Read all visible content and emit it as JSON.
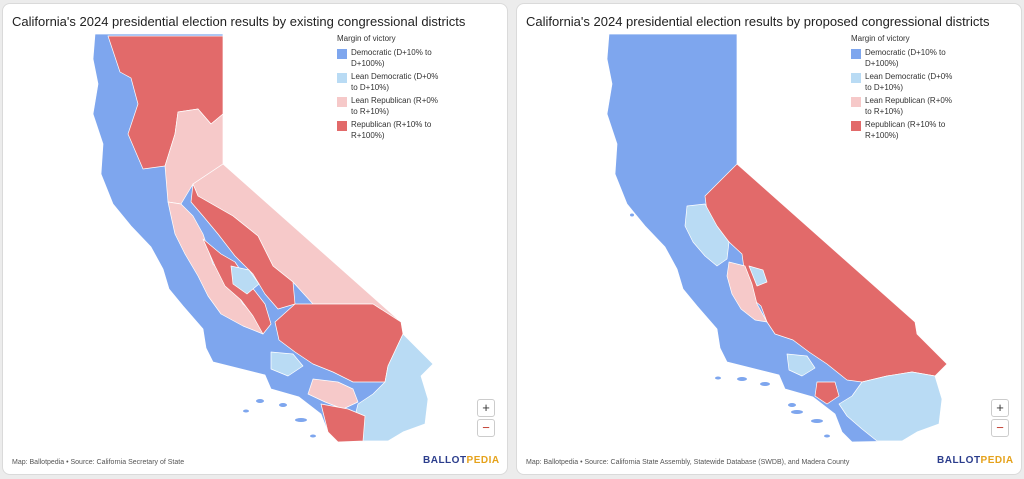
{
  "colors": {
    "democratic": "#7ea6ee",
    "lean_democratic": "#b9dbf4",
    "lean_republican": "#f6c9c9",
    "republican": "#e26a6a"
  },
  "panels": [
    {
      "title": "California's 2024 presidential election results by existing congressional districts",
      "legend_title": "Margin of victory",
      "legend": [
        {
          "label": "Democratic (D+10% to D+100%)",
          "color": "#7ea6ee"
        },
        {
          "label": "Lean Democratic (D+0% to D+10%)",
          "color": "#b9dbf4"
        },
        {
          "label": "Lean Republican (R+0% to R+10%)",
          "color": "#f6c9c9"
        },
        {
          "label": "Republican (R+10% to R+100%)",
          "color": "#e26a6a"
        }
      ],
      "zoom_in": "+",
      "zoom_out": "−",
      "attribution": "Map: Ballotpedia • Source: California Secretary of State",
      "logo_part1": "BALLOT",
      "logo_part2": "PEDIA"
    },
    {
      "title": "California's 2024 presidential election results by proposed congressional districts",
      "legend_title": "Margin of victory",
      "legend": [
        {
          "label": "Democratic (D+10% to D+100%)",
          "color": "#7ea6ee"
        },
        {
          "label": "Lean Democratic (D+0% to D+10%)",
          "color": "#b9dbf4"
        },
        {
          "label": "Lean Republican (R+0% to R+10%)",
          "color": "#f6c9c9"
        },
        {
          "label": "Republican (R+10% to R+100%)",
          "color": "#e26a6a"
        }
      ],
      "zoom_in": "+",
      "zoom_out": "−",
      "attribution": "Map: Ballotpedia • Source: California State Assembly, Statewide Database (SWDB), and Madera County",
      "logo_part1": "BALLOT",
      "logo_part2": "PEDIA"
    }
  ]
}
